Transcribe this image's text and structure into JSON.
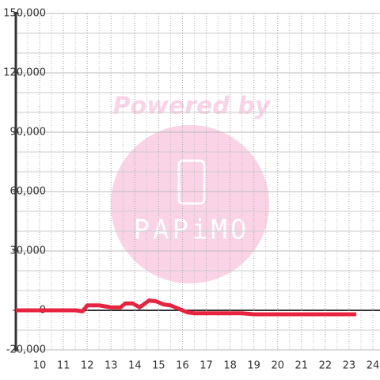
{
  "chart_data": {
    "type": "line",
    "watermark": {
      "line1": "Powered by",
      "line2": "PAPiMO"
    },
    "x": [
      9,
      11.5,
      11.8,
      12,
      12.5,
      13,
      13.4,
      13.6,
      13.9,
      14.2,
      14.6,
      14.9,
      15.2,
      15.5,
      15.8,
      16.2,
      16.5,
      18.5,
      19,
      23.3
    ],
    "series": [
      {
        "color": "#e8233f",
        "values": [
          0,
          0,
          -500,
          2500,
          2500,
          1500,
          1500,
          3500,
          3500,
          1500,
          5000,
          4500,
          3000,
          2500,
          1000,
          -1000,
          -1500,
          -1500,
          -2000,
          -2000
        ]
      }
    ],
    "xlim": [
      9,
      24.3
    ],
    "xticks": [
      10,
      11,
      12,
      13,
      14,
      15,
      16,
      17,
      18,
      19,
      20,
      21,
      22,
      23,
      24
    ],
    "ylim": [
      -20000,
      150000
    ],
    "yticks": [
      {
        "value": -20000,
        "label": "-20,000"
      },
      0,
      {
        "value": 30000,
        "label": "30,000"
      },
      {
        "value": 60000,
        "label": "60,000"
      },
      {
        "value": 90000,
        "label": "90,000"
      },
      {
        "value": 120000,
        "label": "120,000"
      },
      {
        "value": 150000,
        "label": "150,000"
      }
    ],
    "grid": true
  }
}
